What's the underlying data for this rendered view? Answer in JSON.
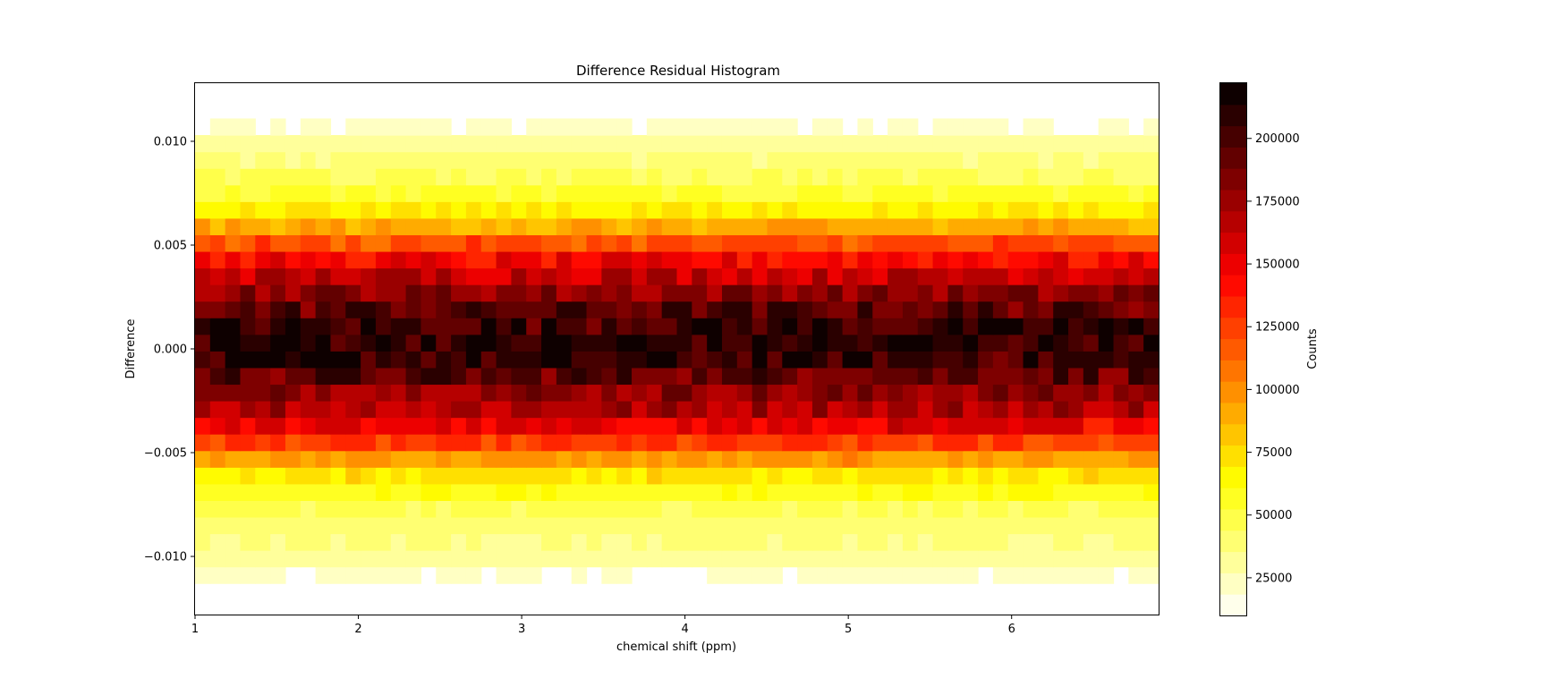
{
  "chart_data": {
    "type": "heatmap",
    "title": "Difference Residual Histogram",
    "xlabel": "chemical shift (ppm)",
    "ylabel": "Difference",
    "xlim": [
      1.0,
      6.9
    ],
    "ylim": [
      -0.0128,
      0.0128
    ],
    "x_ticks": [
      1,
      2,
      3,
      4,
      5,
      6
    ],
    "x_tick_labels": [
      "1",
      "2",
      "3",
      "4",
      "5",
      "6"
    ],
    "y_ticks": [
      -0.01,
      -0.005,
      0.0,
      0.005,
      0.01
    ],
    "y_tick_labels": [
      "−0.010",
      "−0.005",
      "0.000",
      "0.005",
      "0.010"
    ],
    "x_bins": 64,
    "y_bin_edges": [
      -0.0113,
      -0.0105,
      -0.0097,
      -0.0089,
      -0.0081,
      -0.0073,
      -0.0065,
      -0.0057,
      -0.0049,
      -0.0041,
      -0.0033,
      -0.0025,
      -0.0017,
      -0.0009,
      -0.0001,
      0.0007,
      0.0015,
      0.0023,
      0.0031,
      0.0039,
      0.0047,
      0.0055,
      0.0063,
      0.0071,
      0.0079,
      0.0087,
      0.0095,
      0.0103,
      0.0111
    ],
    "y_bin_typical_counts": [
      22000,
      30000,
      36000,
      40000,
      47000,
      58000,
      72000,
      95000,
      125000,
      150000,
      170000,
      180000,
      195000,
      205000,
      210000,
      205000,
      195000,
      180000,
      165000,
      145000,
      120000,
      90000,
      70000,
      55000,
      45000,
      38000,
      30000,
      22000
    ],
    "colormap": "hot_r",
    "colorbar": {
      "label": "Counts",
      "min": 10000,
      "max": 222000,
      "levels": 25,
      "ticks": [
        25000,
        50000,
        75000,
        100000,
        125000,
        150000,
        175000,
        200000
      ],
      "tick_labels": [
        "25000",
        "50000",
        "75000",
        "100000",
        "125000",
        "150000",
        "175000",
        "200000"
      ]
    },
    "grid": false,
    "legend": "none"
  }
}
